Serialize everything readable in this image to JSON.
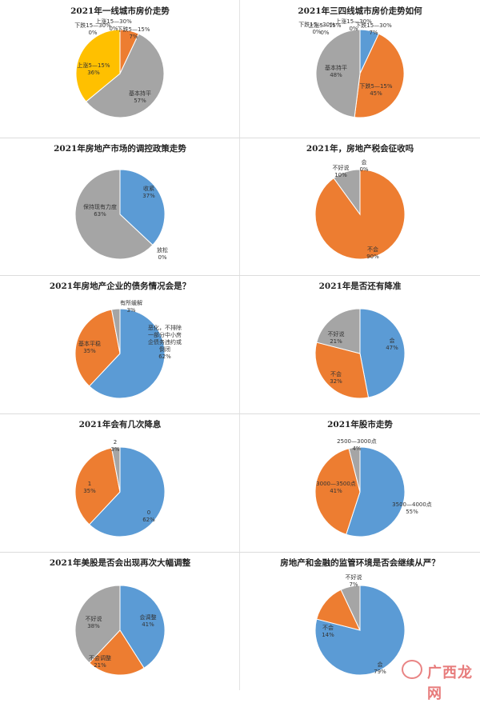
{
  "colors": {
    "blue": "#5B9BD5",
    "orange": "#ED7D31",
    "gray": "#A5A5A5",
    "yellow": "#FFC000"
  },
  "watermark": "广西龙网",
  "chart_data": [
    {
      "type": "pie",
      "title": "2021年一线城市房价走势",
      "slices": [
        {
          "label": "上涨15—30%",
          "value": 0,
          "pct": "0%",
          "color": "#5B9BD5"
        },
        {
          "label": "下跌5—15%",
          "value": 7,
          "pct": "7%",
          "color": "#ED7D31"
        },
        {
          "label": "基本持平",
          "value": 57,
          "pct": "57%",
          "color": "#A5A5A5"
        },
        {
          "label": "上涨5—15%",
          "value": 36,
          "pct": "36%",
          "color": "#FFC000"
        },
        {
          "label": "下跌15—30%",
          "value": 0,
          "pct": "0%",
          "color": "#4472C4"
        }
      ]
    },
    {
      "type": "pie",
      "title": "2021年三四线城市房价走势如何",
      "slices": [
        {
          "label": "上涨15—30%",
          "value": 0,
          "pct": "0%",
          "color": "#FFC000"
        },
        {
          "label": "下跌15—30%",
          "value": 0,
          "pct": "0%",
          "color": "#4472C4"
        },
        {
          "label": "下跌15—30%",
          "value": 7,
          "pct": "7%",
          "color": "#5B9BD5"
        },
        {
          "label": "下跌5—15%",
          "value": 45,
          "pct": "45%",
          "color": "#ED7D31"
        },
        {
          "label": "基本持平",
          "value": 48,
          "pct": "48%",
          "color": "#A5A5A5"
        },
        {
          "label": "上涨5—15%",
          "value": 0,
          "pct": "0%",
          "color": "#70AD47"
        }
      ]
    },
    {
      "type": "pie",
      "title": "2021年房地产市场的调控政策走势",
      "slices": [
        {
          "label": "收紧",
          "value": 37,
          "pct": "37%",
          "color": "#5B9BD5"
        },
        {
          "label": "放松",
          "value": 0,
          "pct": "0%",
          "color": "#ED7D31"
        },
        {
          "label": "保持现有力度",
          "value": 63,
          "pct": "63%",
          "color": "#A5A5A5"
        }
      ]
    },
    {
      "type": "pie",
      "title": "2021年，房地产税会征收吗",
      "slices": [
        {
          "label": "会",
          "value": 0,
          "pct": "0%",
          "color": "#5B9BD5"
        },
        {
          "label": "不会",
          "value": 90,
          "pct": "90%",
          "color": "#ED7D31"
        },
        {
          "label": "不好说",
          "value": 10,
          "pct": "10%",
          "color": "#A5A5A5"
        }
      ]
    },
    {
      "type": "pie",
      "title": "2021年房地产企业的债务情况会是？",
      "slices": [
        {
          "label": "恶化，不排除一部分中小房企债务违约或倒闭",
          "value": 62,
          "pct": "62%",
          "color": "#5B9BD5"
        },
        {
          "label": "基本平稳",
          "value": 35,
          "pct": "35%",
          "color": "#ED7D31"
        },
        {
          "label": "有所缓解",
          "value": 3,
          "pct": "3%",
          "color": "#A5A5A5"
        }
      ]
    },
    {
      "type": "pie",
      "title": "2021年是否还有降准",
      "slices": [
        {
          "label": "会",
          "value": 47,
          "pct": "47%",
          "color": "#5B9BD5"
        },
        {
          "label": "不会",
          "value": 32,
          "pct": "32%",
          "color": "#ED7D31"
        },
        {
          "label": "不好说",
          "value": 21,
          "pct": "21%",
          "color": "#A5A5A5"
        }
      ]
    },
    {
      "type": "pie",
      "title": "2021年会有几次降息",
      "slices": [
        {
          "label": "0",
          "value": 62,
          "pct": "62%",
          "color": "#5B9BD5"
        },
        {
          "label": "1",
          "value": 35,
          "pct": "35%",
          "color": "#ED7D31"
        },
        {
          "label": "2",
          "value": 3,
          "pct": "3%",
          "color": "#A5A5A5"
        }
      ]
    },
    {
      "type": "pie",
      "title": "2021年股市走势",
      "slices": [
        {
          "label": "3500—4000点",
          "value": 55,
          "pct": "55%",
          "color": "#5B9BD5"
        },
        {
          "label": "3000—3500点",
          "value": 41,
          "pct": "41%",
          "color": "#ED7D31"
        },
        {
          "label": "2500—3000点",
          "value": 4,
          "pct": "4%",
          "color": "#A5A5A5"
        }
      ]
    },
    {
      "type": "pie",
      "title": "2021年美股是否会出现再次大幅调整",
      "slices": [
        {
          "label": "会调整",
          "value": 41,
          "pct": "41%",
          "color": "#5B9BD5"
        },
        {
          "label": "不会调整",
          "value": 21,
          "pct": "21%",
          "color": "#ED7D31"
        },
        {
          "label": "不好说",
          "value": 38,
          "pct": "38%",
          "color": "#A5A5A5"
        }
      ]
    },
    {
      "type": "pie",
      "title": "房地产和金融的监管环境是否会继续从严？",
      "slices": [
        {
          "label": "会",
          "value": 79,
          "pct": "79%",
          "color": "#5B9BD5"
        },
        {
          "label": "不会",
          "value": 14,
          "pct": "14%",
          "color": "#ED7D31"
        },
        {
          "label": "不好说",
          "value": 7,
          "pct": "7%",
          "color": "#A5A5A5"
        }
      ]
    }
  ]
}
